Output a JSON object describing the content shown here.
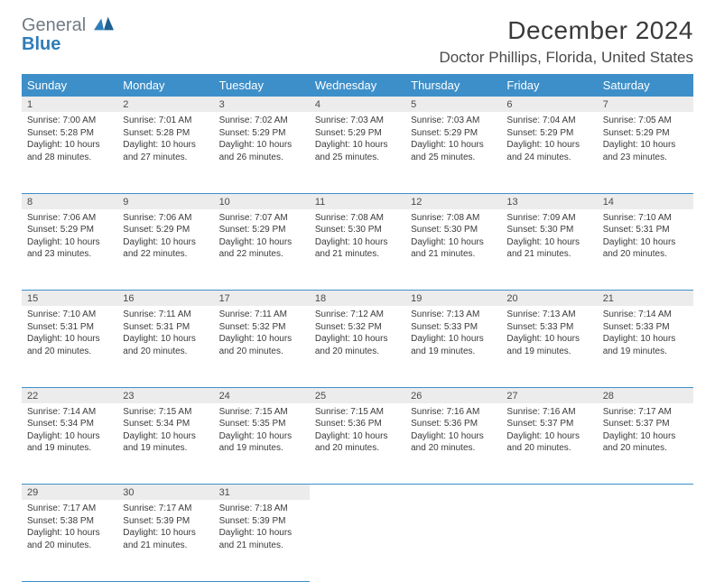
{
  "logo": {
    "line1": "General",
    "line2": "Blue"
  },
  "title": "December 2024",
  "location": "Doctor Phillips, Florida, United States",
  "colors": {
    "header_bg": "#3d8fc9",
    "header_text": "#ffffff",
    "daynum_bg": "#ececec",
    "rule": "#3d8fc9",
    "logo_gray": "#6f7b85",
    "logo_blue": "#2f7db8"
  },
  "weekdays": [
    "Sunday",
    "Monday",
    "Tuesday",
    "Wednesday",
    "Thursday",
    "Friday",
    "Saturday"
  ],
  "weeks": [
    [
      {
        "n": "1",
        "sr": "7:00 AM",
        "ss": "5:28 PM",
        "dh": "10",
        "dm": "28"
      },
      {
        "n": "2",
        "sr": "7:01 AM",
        "ss": "5:28 PM",
        "dh": "10",
        "dm": "27"
      },
      {
        "n": "3",
        "sr": "7:02 AM",
        "ss": "5:29 PM",
        "dh": "10",
        "dm": "26"
      },
      {
        "n": "4",
        "sr": "7:03 AM",
        "ss": "5:29 PM",
        "dh": "10",
        "dm": "25"
      },
      {
        "n": "5",
        "sr": "7:03 AM",
        "ss": "5:29 PM",
        "dh": "10",
        "dm": "25"
      },
      {
        "n": "6",
        "sr": "7:04 AM",
        "ss": "5:29 PM",
        "dh": "10",
        "dm": "24"
      },
      {
        "n": "7",
        "sr": "7:05 AM",
        "ss": "5:29 PM",
        "dh": "10",
        "dm": "23"
      }
    ],
    [
      {
        "n": "8",
        "sr": "7:06 AM",
        "ss": "5:29 PM",
        "dh": "10",
        "dm": "23"
      },
      {
        "n": "9",
        "sr": "7:06 AM",
        "ss": "5:29 PM",
        "dh": "10",
        "dm": "22"
      },
      {
        "n": "10",
        "sr": "7:07 AM",
        "ss": "5:29 PM",
        "dh": "10",
        "dm": "22"
      },
      {
        "n": "11",
        "sr": "7:08 AM",
        "ss": "5:30 PM",
        "dh": "10",
        "dm": "21"
      },
      {
        "n": "12",
        "sr": "7:08 AM",
        "ss": "5:30 PM",
        "dh": "10",
        "dm": "21"
      },
      {
        "n": "13",
        "sr": "7:09 AM",
        "ss": "5:30 PM",
        "dh": "10",
        "dm": "21"
      },
      {
        "n": "14",
        "sr": "7:10 AM",
        "ss": "5:31 PM",
        "dh": "10",
        "dm": "20"
      }
    ],
    [
      {
        "n": "15",
        "sr": "7:10 AM",
        "ss": "5:31 PM",
        "dh": "10",
        "dm": "20"
      },
      {
        "n": "16",
        "sr": "7:11 AM",
        "ss": "5:31 PM",
        "dh": "10",
        "dm": "20"
      },
      {
        "n": "17",
        "sr": "7:11 AM",
        "ss": "5:32 PM",
        "dh": "10",
        "dm": "20"
      },
      {
        "n": "18",
        "sr": "7:12 AM",
        "ss": "5:32 PM",
        "dh": "10",
        "dm": "20"
      },
      {
        "n": "19",
        "sr": "7:13 AM",
        "ss": "5:33 PM",
        "dh": "10",
        "dm": "19"
      },
      {
        "n": "20",
        "sr": "7:13 AM",
        "ss": "5:33 PM",
        "dh": "10",
        "dm": "19"
      },
      {
        "n": "21",
        "sr": "7:14 AM",
        "ss": "5:33 PM",
        "dh": "10",
        "dm": "19"
      }
    ],
    [
      {
        "n": "22",
        "sr": "7:14 AM",
        "ss": "5:34 PM",
        "dh": "10",
        "dm": "19"
      },
      {
        "n": "23",
        "sr": "7:15 AM",
        "ss": "5:34 PM",
        "dh": "10",
        "dm": "19"
      },
      {
        "n": "24",
        "sr": "7:15 AM",
        "ss": "5:35 PM",
        "dh": "10",
        "dm": "19"
      },
      {
        "n": "25",
        "sr": "7:15 AM",
        "ss": "5:36 PM",
        "dh": "10",
        "dm": "20"
      },
      {
        "n": "26",
        "sr": "7:16 AM",
        "ss": "5:36 PM",
        "dh": "10",
        "dm": "20"
      },
      {
        "n": "27",
        "sr": "7:16 AM",
        "ss": "5:37 PM",
        "dh": "10",
        "dm": "20"
      },
      {
        "n": "28",
        "sr": "7:17 AM",
        "ss": "5:37 PM",
        "dh": "10",
        "dm": "20"
      }
    ],
    [
      {
        "n": "29",
        "sr": "7:17 AM",
        "ss": "5:38 PM",
        "dh": "10",
        "dm": "20"
      },
      {
        "n": "30",
        "sr": "7:17 AM",
        "ss": "5:39 PM",
        "dh": "10",
        "dm": "21"
      },
      {
        "n": "31",
        "sr": "7:18 AM",
        "ss": "5:39 PM",
        "dh": "10",
        "dm": "21"
      },
      null,
      null,
      null,
      null
    ]
  ],
  "labels": {
    "sunrise": "Sunrise: ",
    "sunset": "Sunset: ",
    "daylight_prefix": "Daylight: ",
    "hours_word": " hours",
    "and_word": "and ",
    "minutes_word": " minutes."
  }
}
